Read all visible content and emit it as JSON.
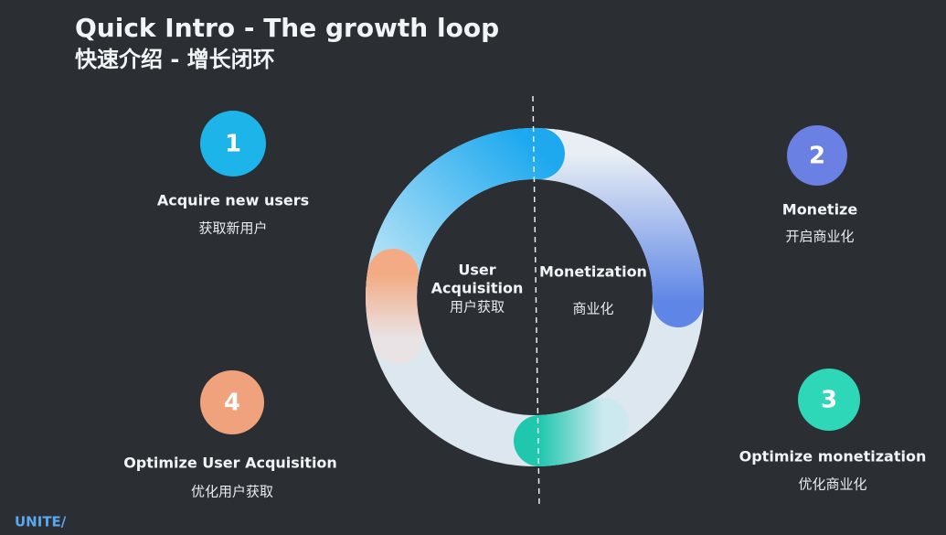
{
  "header": {
    "title": "Quick Intro - The growth loop",
    "subtitle": "快速介绍 - 增长闭环"
  },
  "center": {
    "left": {
      "lines": [
        "User",
        "Acquisition",
        "用户获取"
      ]
    },
    "right": {
      "lines": [
        "Monetization",
        "商业化"
      ]
    }
  },
  "steps": [
    {
      "number": "1",
      "label": "Acquire new users",
      "label_zh": "获取新用户"
    },
    {
      "number": "2",
      "label": "Monetize",
      "label_zh": "开启商业化"
    },
    {
      "number": "3",
      "label": "Optimize monetization",
      "label_zh": "优化商业化"
    },
    {
      "number": "4",
      "label": "Optimize User Acquisition",
      "label_zh": "优化用户获取"
    }
  ],
  "footer": {
    "logo": "UNITE/"
  }
}
